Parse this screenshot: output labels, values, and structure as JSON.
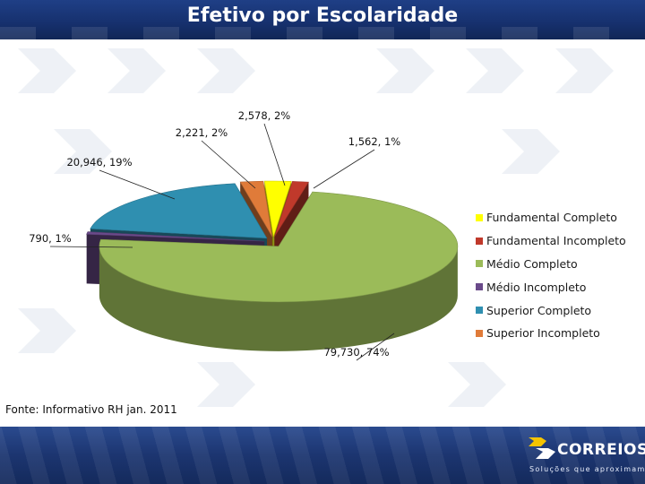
{
  "slide": {
    "title": "Efetivo por Escolaridade",
    "source": "Fonte: Informativo RH jan. 2011"
  },
  "brand": {
    "name": "CORREIOS",
    "tagline": "Soluções que aproximam",
    "colors": {
      "band": "#1c3570",
      "accent": "#f5c400"
    }
  },
  "chart_data": {
    "type": "pie",
    "title": "",
    "style": "3d-exploded",
    "legend_position": "right",
    "slices": [
      {
        "name": "Fundamental Completo",
        "value": 2578,
        "percent": "2%",
        "label": "2,578, 2%",
        "color": "#ffff00"
      },
      {
        "name": "Fundamental Incompleto",
        "value": 1562,
        "percent": "1%",
        "label": "1,562, 1%",
        "color": "#c0392b"
      },
      {
        "name": "Médio Completo",
        "value": 79730,
        "percent": "74%",
        "label": "79,730, 74%",
        "color": "#9bbb59"
      },
      {
        "name": "Médio Incompleto",
        "value": 790,
        "percent": "1%",
        "label": "790, 1%",
        "color": "#6a4a8a"
      },
      {
        "name": "Superior Completo",
        "value": 20946,
        "percent": "19%",
        "label": "20,946, 19%",
        "color": "#2f8fb0"
      },
      {
        "name": "Superior Incompleto",
        "value": 2221,
        "percent": "2%",
        "label": "2,221, 2%",
        "color": "#e07b39"
      }
    ]
  }
}
